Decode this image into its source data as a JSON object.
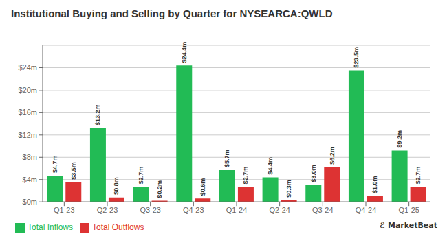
{
  "chart_data": {
    "type": "bar",
    "title": "Institutional Buying and Selling by Quarter for NYSEARCA:QWLD",
    "categories": [
      "Q1-23",
      "Q2-23",
      "Q3-23",
      "Q4-23",
      "Q1-24",
      "Q2-24",
      "Q3-24",
      "Q4-24",
      "Q1-25"
    ],
    "series": [
      {
        "name": "Total Inflows",
        "color": "#22bb55",
        "values": [
          4.7,
          13.2,
          2.7,
          24.4,
          5.7,
          4.4,
          3.0,
          23.5,
          9.2
        ],
        "value_labels": [
          "$4.7m",
          "$13.2m",
          "$2.7m",
          "$24.4m",
          "$5.7m",
          "$4.4m",
          "$3.0m",
          "$23.5m",
          "$9.2m"
        ]
      },
      {
        "name": "Total Outflows",
        "color": "#dd3333",
        "values": [
          3.5,
          0.8,
          0.2,
          0.6,
          2.7,
          0.3,
          6.2,
          1.0,
          2.7
        ],
        "value_labels": [
          "$3.5m",
          "$0.8m",
          "$0.2m",
          "$0.6m",
          "$2.7m",
          "$0.3m",
          "$6.2m",
          "$1.0m",
          "$2.7m"
        ]
      }
    ],
    "ylim": [
      0,
      28
    ],
    "yticks": [
      {
        "value": 0,
        "label": "$0m"
      },
      {
        "value": 4,
        "label": "$4m"
      },
      {
        "value": 8,
        "label": "$8m"
      },
      {
        "value": 12,
        "label": "$12m"
      },
      {
        "value": 16,
        "label": "$16m"
      },
      {
        "value": 20,
        "label": "$20m"
      },
      {
        "value": 24,
        "label": "$24m"
      }
    ],
    "grid": true,
    "legend": "lower left",
    "data_labels": true,
    "annotations": [
      "ℰ MarketBeat"
    ]
  }
}
